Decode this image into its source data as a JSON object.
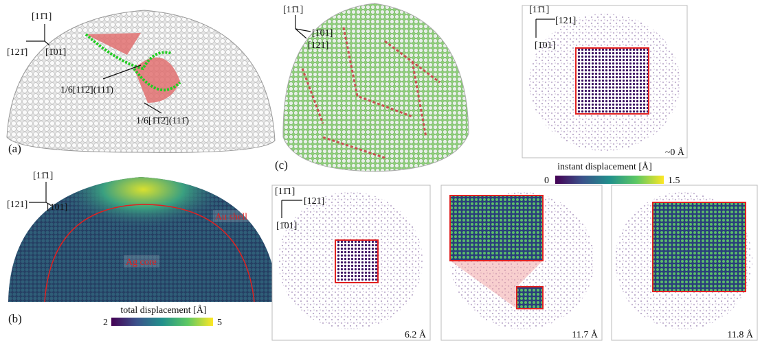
{
  "panel_a": {
    "label": "(a)",
    "axes": [
      "[11̄1]",
      "[121̄]",
      "[1̄01]"
    ],
    "annotations": [
      "1/6[11̄2̄](111̄)",
      "1/6[1̄1̄2̄](111̄)"
    ]
  },
  "panel_b": {
    "label": "(b)",
    "axes": [
      "[11̄1]",
      "[121]",
      "[1̄01]"
    ],
    "shell_label": "Au shell",
    "core_label": "Ag core",
    "colorbar": {
      "label": "total displacement [Å]",
      "ticks": [
        2,
        5
      ]
    }
  },
  "panel_c": {
    "label": "(c)",
    "dome_axes": [
      "[11̄1]",
      "[1̄01]",
      "[121]"
    ],
    "snapshot_axes": [
      "[11̄1]",
      "[121]",
      "[1̄01]"
    ],
    "colorbar": {
      "label": "instant displacement [Å]",
      "ticks": [
        0,
        1.5
      ]
    },
    "snapshots": [
      "~0 Å",
      "6.2 Å",
      "11.7 Å",
      "11.8 Å"
    ]
  }
}
